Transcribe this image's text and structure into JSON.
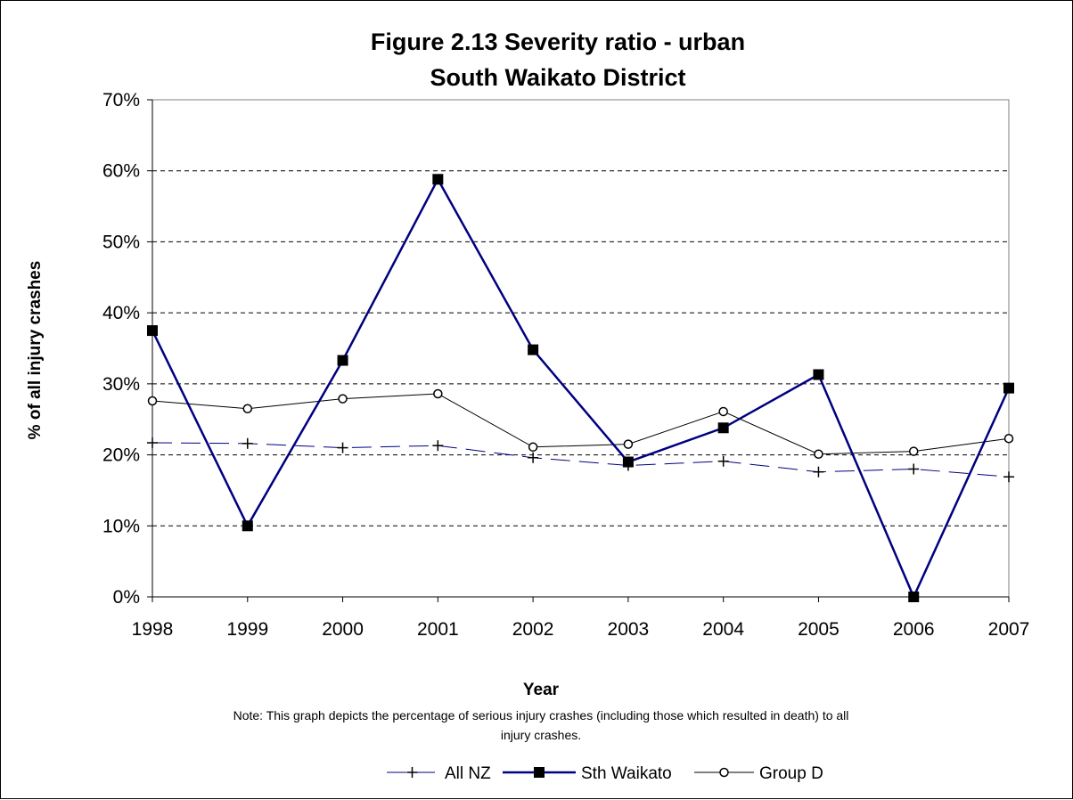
{
  "chart_data": {
    "type": "line",
    "title": [
      "Figure 2.13 Severity ratio - urban",
      "South Waikato District"
    ],
    "xlabel": "Year",
    "ylabel": "% of all injury crashes",
    "x": [
      "1998",
      "1999",
      "2000",
      "2001",
      "2002",
      "2003",
      "2004",
      "2005",
      "2006",
      "2007"
    ],
    "ylim": [
      0,
      70
    ],
    "yticks": [
      0,
      10,
      20,
      30,
      40,
      50,
      60,
      70
    ],
    "ytick_labels": [
      "0%",
      "10%",
      "20%",
      "30%",
      "40%",
      "50%",
      "60%",
      "70%"
    ],
    "grid": "horizontal dashed",
    "series": [
      {
        "name": "All NZ",
        "values": [
          21.7,
          21.6,
          21.0,
          21.3,
          19.6,
          18.5,
          19.1,
          17.6,
          18.0,
          16.9
        ],
        "color": "#000080",
        "line": "dashed",
        "marker": "plus"
      },
      {
        "name": "Sth Waikato",
        "values": [
          37.5,
          10.0,
          33.3,
          58.8,
          34.8,
          19.0,
          23.8,
          31.3,
          0.0,
          29.4
        ],
        "color": "#000080",
        "line": "solid",
        "marker": "square"
      },
      {
        "name": "Group D",
        "values": [
          27.6,
          26.5,
          27.9,
          28.6,
          21.1,
          21.5,
          26.1,
          20.1,
          20.5,
          22.3
        ],
        "color": "#000000",
        "line": "solid",
        "marker": "circle"
      }
    ],
    "note": [
      "Note: This graph depicts the percentage of serious injury crashes (including those which resulted in death) to all",
      "injury crashes."
    ],
    "legend_position": "bottom"
  }
}
